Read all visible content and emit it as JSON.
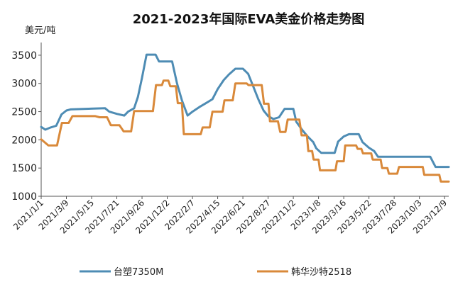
{
  "chart_data": {
    "type": "line",
    "title": "2021-2023年国际EVA美金价格走势图",
    "unit_label": "美元/吨",
    "y_ticks": [
      "3500",
      "3000",
      "2500",
      "2000",
      "1500",
      "1000"
    ],
    "ylim": [
      1000,
      3700
    ],
    "xlim": [
      "2021-01-01",
      "2023-12-20"
    ],
    "x_ticks": [
      "2021/1/1",
      "2021/3/9",
      "2021/5/15",
      "2021/7/21",
      "2021/9/26",
      "2021/12/2",
      "2022/2/7",
      "2022/4/15",
      "2022/6/21",
      "2022/8/27",
      "2022/11/2",
      "2023/1/8",
      "2023/3/16",
      "2023/5/22",
      "2023/7/28",
      "2023/10/3",
      "2023/12/9"
    ],
    "x_tick_dates": [
      "2021-01-01",
      "2021-03-09",
      "2021-05-15",
      "2021-07-21",
      "2021-09-26",
      "2021-12-02",
      "2022-02-07",
      "2022-04-15",
      "2022-06-21",
      "2022-08-27",
      "2022-11-02",
      "2023-01-08",
      "2023-03-16",
      "2023-05-22",
      "2023-07-28",
      "2023-10-03",
      "2023-12-09"
    ],
    "legend_position": "bottom",
    "grid": false,
    "series": [
      {
        "name": "台塑7350M",
        "color": "#4E8CB4",
        "points": [
          [
            "2021-01-01",
            2230
          ],
          [
            "2021-01-12",
            2180
          ],
          [
            "2021-01-26",
            2220
          ],
          [
            "2021-02-10",
            2250
          ],
          [
            "2021-02-24",
            2450
          ],
          [
            "2021-03-09",
            2520
          ],
          [
            "2021-03-20",
            2540
          ],
          [
            "2021-04-30",
            2550
          ],
          [
            "2021-06-20",
            2560
          ],
          [
            "2021-07-01",
            2500
          ],
          [
            "2021-07-21",
            2460
          ],
          [
            "2021-08-10",
            2430
          ],
          [
            "2021-08-20",
            2500
          ],
          [
            "2021-09-05",
            2560
          ],
          [
            "2021-09-15",
            2760
          ],
          [
            "2021-09-26",
            3100
          ],
          [
            "2021-10-08",
            3510
          ],
          [
            "2021-11-01",
            3510
          ],
          [
            "2021-11-10",
            3390
          ],
          [
            "2021-12-15",
            3390
          ],
          [
            "2021-12-28",
            3000
          ],
          [
            "2022-01-10",
            2700
          ],
          [
            "2022-01-25",
            2430
          ],
          [
            "2022-02-07",
            2500
          ],
          [
            "2022-02-25",
            2580
          ],
          [
            "2022-03-15",
            2650
          ],
          [
            "2022-04-01",
            2720
          ],
          [
            "2022-04-15",
            2900
          ],
          [
            "2022-05-01",
            3060
          ],
          [
            "2022-05-15",
            3160
          ],
          [
            "2022-06-01",
            3260
          ],
          [
            "2022-06-21",
            3260
          ],
          [
            "2022-07-05",
            3170
          ],
          [
            "2022-07-20",
            2920
          ],
          [
            "2022-08-01",
            2720
          ],
          [
            "2022-08-15",
            2520
          ],
          [
            "2022-08-27",
            2420
          ],
          [
            "2022-09-10",
            2370
          ],
          [
            "2022-09-25",
            2400
          ],
          [
            "2022-10-10",
            2550
          ],
          [
            "2022-11-02",
            2550
          ],
          [
            "2022-11-10",
            2320
          ],
          [
            "2022-11-25",
            2180
          ],
          [
            "2022-12-10",
            2060
          ],
          [
            "2022-12-25",
            1960
          ],
          [
            "2023-01-02",
            1850
          ],
          [
            "2023-01-15",
            1770
          ],
          [
            "2023-02-20",
            1770
          ],
          [
            "2023-03-01",
            1970
          ],
          [
            "2023-03-16",
            2060
          ],
          [
            "2023-03-30",
            2100
          ],
          [
            "2023-04-25",
            2100
          ],
          [
            "2023-05-05",
            1960
          ],
          [
            "2023-05-22",
            1860
          ],
          [
            "2023-06-05",
            1800
          ],
          [
            "2023-06-15",
            1700
          ],
          [
            "2023-07-28",
            1700
          ],
          [
            "2023-11-01",
            1700
          ],
          [
            "2023-11-15",
            1520
          ],
          [
            "2023-12-20",
            1520
          ]
        ]
      },
      {
        "name": "韩华沙特2518",
        "color": "#D9893A",
        "points": [
          [
            "2021-01-01",
            2010
          ],
          [
            "2021-01-20",
            1900
          ],
          [
            "2021-02-12",
            1900
          ],
          [
            "2021-02-25",
            2300
          ],
          [
            "2021-03-15",
            2300
          ],
          [
            "2021-03-25",
            2420
          ],
          [
            "2021-05-25",
            2420
          ],
          [
            "2021-06-05",
            2400
          ],
          [
            "2021-06-25",
            2400
          ],
          [
            "2021-07-05",
            2260
          ],
          [
            "2021-07-28",
            2260
          ],
          [
            "2021-08-08",
            2150
          ],
          [
            "2021-08-28",
            2150
          ],
          [
            "2021-09-05",
            2510
          ],
          [
            "2021-10-25",
            2510
          ],
          [
            "2021-11-02",
            2970
          ],
          [
            "2021-11-18",
            2970
          ],
          [
            "2021-11-22",
            3050
          ],
          [
            "2021-12-05",
            3050
          ],
          [
            "2021-12-10",
            2950
          ],
          [
            "2021-12-25",
            2950
          ],
          [
            "2021-12-30",
            2650
          ],
          [
            "2022-01-10",
            2650
          ],
          [
            "2022-01-15",
            2100
          ],
          [
            "2022-03-01",
            2100
          ],
          [
            "2022-03-06",
            2220
          ],
          [
            "2022-03-25",
            2220
          ],
          [
            "2022-04-01",
            2500
          ],
          [
            "2022-04-28",
            2500
          ],
          [
            "2022-05-03",
            2700
          ],
          [
            "2022-05-25",
            2700
          ],
          [
            "2022-06-01",
            3000
          ],
          [
            "2022-07-01",
            3000
          ],
          [
            "2022-07-06",
            2970
          ],
          [
            "2022-08-10",
            2970
          ],
          [
            "2022-08-16",
            2640
          ],
          [
            "2022-08-28",
            2640
          ],
          [
            "2022-09-01",
            2330
          ],
          [
            "2022-09-22",
            2330
          ],
          [
            "2022-09-28",
            2140
          ],
          [
            "2022-10-12",
            2140
          ],
          [
            "2022-10-18",
            2360
          ],
          [
            "2022-11-18",
            2360
          ],
          [
            "2022-11-24",
            2080
          ],
          [
            "2022-12-08",
            2080
          ],
          [
            "2022-12-12",
            1800
          ],
          [
            "2022-12-22",
            1800
          ],
          [
            "2022-12-26",
            1650
          ],
          [
            "2023-01-08",
            1650
          ],
          [
            "2023-01-12",
            1460
          ],
          [
            "2023-02-22",
            1460
          ],
          [
            "2023-02-26",
            1620
          ],
          [
            "2023-03-16",
            1620
          ],
          [
            "2023-03-20",
            1900
          ],
          [
            "2023-04-18",
            1900
          ],
          [
            "2023-04-22",
            1840
          ],
          [
            "2023-05-02",
            1840
          ],
          [
            "2023-05-06",
            1760
          ],
          [
            "2023-05-28",
            1760
          ],
          [
            "2023-06-01",
            1650
          ],
          [
            "2023-06-22",
            1650
          ],
          [
            "2023-06-26",
            1500
          ],
          [
            "2023-07-10",
            1500
          ],
          [
            "2023-07-14",
            1400
          ],
          [
            "2023-08-05",
            1400
          ],
          [
            "2023-08-10",
            1520
          ],
          [
            "2023-10-12",
            1520
          ],
          [
            "2023-10-16",
            1380
          ],
          [
            "2023-11-25",
            1380
          ],
          [
            "2023-11-29",
            1260
          ],
          [
            "2023-12-20",
            1260
          ]
        ]
      }
    ]
  }
}
